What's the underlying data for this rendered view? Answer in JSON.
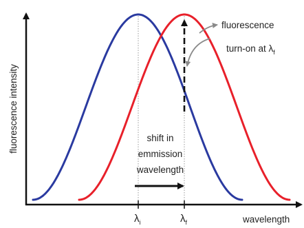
{
  "axes": {
    "y_label": "fluorescence intensity",
    "x_label": "wavelength"
  },
  "curves": {
    "initial_color": "#2a3aa0",
    "final_color": "#e8202a"
  },
  "annotations": {
    "turn_on_line1": "fluorescence",
    "turn_on_line2": "turn-on at λ",
    "turn_on_sub": "f",
    "shift_line1": "shift in",
    "shift_line2": "emmission",
    "shift_line3": "wavelength"
  },
  "ticks": {
    "initial_symbol": "λ",
    "initial_sub": "i",
    "final_symbol": "λ",
    "final_sub": "f"
  }
}
